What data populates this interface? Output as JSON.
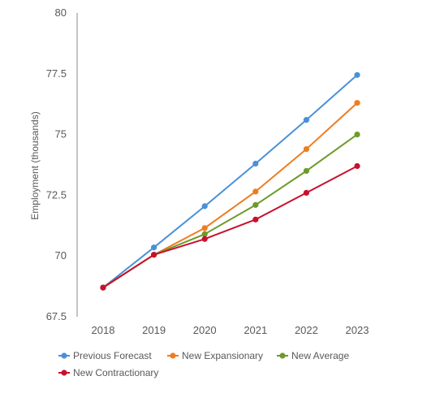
{
  "chart_data": {
    "type": "line",
    "title": "",
    "xlabel": "",
    "ylabel": "Employment (thousands)",
    "ylim": [
      67.5,
      80
    ],
    "yticks": [
      "67.5",
      "70",
      "72.5",
      "75",
      "77.5",
      "80"
    ],
    "categories": [
      "2018",
      "2019",
      "2020",
      "2021",
      "2022",
      "2023"
    ],
    "grid": false,
    "legend_position": "bottom-left",
    "series": [
      {
        "name": "Previous Forecast",
        "color": "#4a90d9",
        "values": [
          68.7,
          70.35,
          72.05,
          73.8,
          75.6,
          77.45
        ]
      },
      {
        "name": "New Expansionary",
        "color": "#ee7d1e",
        "values": [
          68.7,
          70.05,
          71.15,
          72.65,
          74.4,
          76.3
        ]
      },
      {
        "name": "New Average",
        "color": "#6e9a2c",
        "values": [
          68.7,
          70.05,
          70.9,
          72.1,
          73.5,
          75.0
        ]
      },
      {
        "name": "New Contractionary",
        "color": "#c8102e",
        "values": [
          68.7,
          70.05,
          70.7,
          71.5,
          72.6,
          73.7
        ]
      }
    ]
  }
}
